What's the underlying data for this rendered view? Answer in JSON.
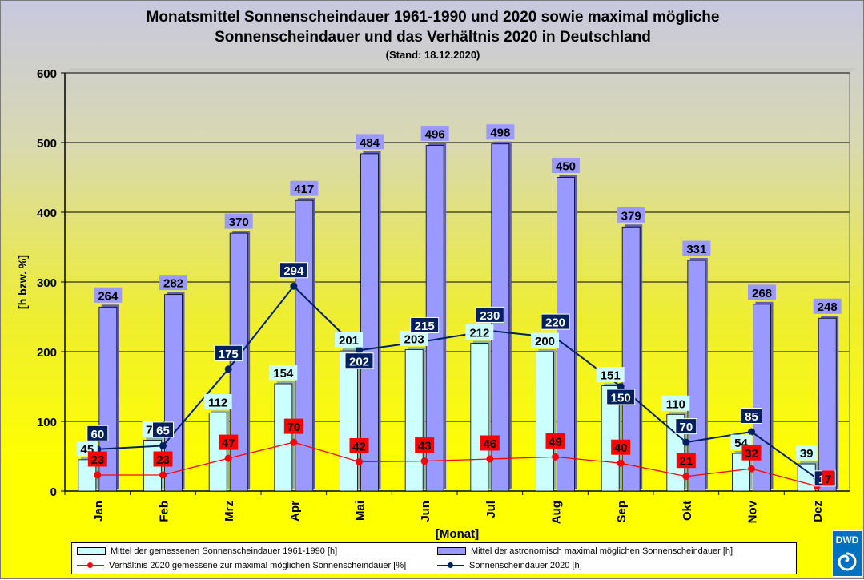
{
  "titles": {
    "line1": "Monatsmittel Sonnenscheindauer 1961-1990 und 2020 sowie maximal mögliche",
    "line2": "Sonnenscheindauer und das Verhältnis 2020 in Deutschland",
    "line3": "(Stand: 18.12.2020)"
  },
  "legend": {
    "cyan": "Mittel der gemessenen Sonnenscheindauer 1961-1990 [h]",
    "purple": "Mittel der astronomisch maximal möglichen Sonnenscheindauer [h]",
    "red": "Verhältnis 2020 gemessene zur maximal möglichen Sonnenscheindauer [%]",
    "navy": "Sonnenscheindauer 2020 [h]"
  },
  "logo": {
    "text": "DWD"
  },
  "colors": {
    "cyan": "#ccffff",
    "purple": "#9999ff",
    "red": "#ff0000",
    "navy": "#002060",
    "grid": "#000000"
  },
  "chart_data": {
    "type": "bar",
    "title": "Monatsmittel Sonnenscheindauer 1961-1990 und 2020 sowie maximal mögliche Sonnenscheindauer und das Verhältnis 2020 in Deutschland",
    "subtitle": "(Stand: 18.12.2020)",
    "xlabel": "[Monat]",
    "ylabel": "[h bzw. %]",
    "ylim": [
      0,
      600
    ],
    "yticks": [
      0,
      100,
      200,
      300,
      400,
      500,
      600
    ],
    "grid": true,
    "legend_position": "bottom",
    "categories": [
      "Jan",
      "Feb",
      "Mrz",
      "Apr",
      "Mai",
      "Jun",
      "Jul",
      "Aug",
      "Sep",
      "Okt",
      "Nov",
      "Dez"
    ],
    "series": [
      {
        "name": "Mittel der gemessenen Sonnenscheindauer 1961-1990 [h]",
        "type": "bar",
        "values": [
          45,
          73,
          112,
          154,
          201,
          203,
          212,
          200,
          151,
          110,
          54,
          39
        ]
      },
      {
        "name": "Mittel der astronomisch maximal möglichen Sonnenscheindauer [h]",
        "type": "bar",
        "values": [
          264,
          282,
          370,
          417,
          484,
          496,
          498,
          450,
          379,
          331,
          268,
          248
        ]
      },
      {
        "name": "Verhältnis 2020 gemessene zur maximal möglichen Sonnenscheindauer [%]",
        "type": "line",
        "values": [
          23,
          23,
          47,
          70,
          42,
          43,
          46,
          49,
          40,
          21,
          32,
          7
        ]
      },
      {
        "name": "Sonnenscheindauer 2020 [h]",
        "type": "line",
        "values": [
          60,
          65,
          175,
          294,
          202,
          215,
          230,
          220,
          150,
          70,
          85,
          18
        ]
      }
    ]
  }
}
